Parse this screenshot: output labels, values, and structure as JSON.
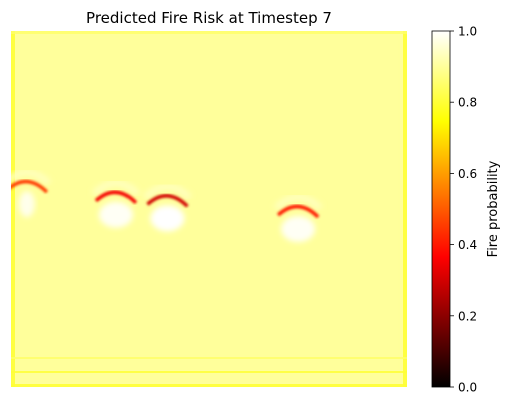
{
  "chart_data": {
    "type": "heatmap",
    "title": "Predicted Fire Risk at Timestep 7",
    "xlabel": "",
    "ylabel": "",
    "axes_visible": false,
    "colormap": "hot",
    "background_value": 0.9,
    "edge_values": {
      "left": 0.8,
      "top": 0.85,
      "right": 0.8,
      "bottom": 0.8
    },
    "bottom_band_values": [
      0.85,
      0.8
    ],
    "features": [
      {
        "x_frac": 0.04,
        "y_frac": 0.43,
        "peak": 0.45,
        "hole": 0.98
      },
      {
        "x_frac": 0.265,
        "y_frac": 0.46,
        "peak": 0.35,
        "hole": 0.99
      },
      {
        "x_frac": 0.395,
        "y_frac": 0.47,
        "peak": 0.3,
        "hole": 1.0
      },
      {
        "x_frac": 0.725,
        "y_frac": 0.5,
        "peak": 0.4,
        "hole": 0.99
      }
    ],
    "colorbar": {
      "label": "Fire probability",
      "range": [
        0.0,
        1.0
      ],
      "ticks": [
        "0.0",
        "0.2",
        "0.4",
        "0.6",
        "0.8",
        "1.0"
      ]
    }
  }
}
